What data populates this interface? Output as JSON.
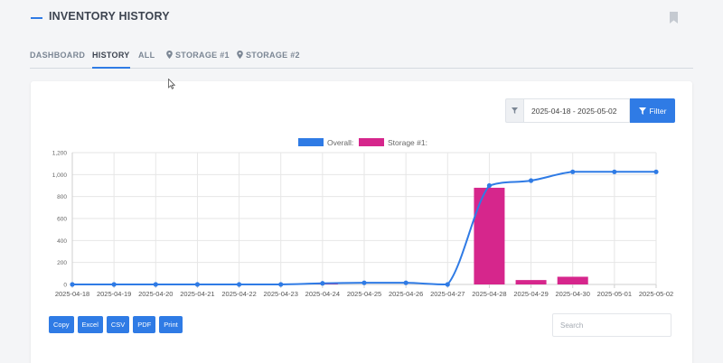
{
  "header": {
    "title": "INVENTORY HISTORY",
    "bookmark_icon": "bookmark-icon"
  },
  "tabs": [
    {
      "label": "DASHBOARD",
      "active": false
    },
    {
      "label": "HISTORY",
      "active": true
    },
    {
      "label": "ALL",
      "active": false
    },
    {
      "label": "STORAGE #1",
      "active": false,
      "icon": "location-pin-icon"
    },
    {
      "label": "STORAGE #2",
      "active": false,
      "icon": "location-pin-icon"
    }
  ],
  "filter": {
    "date_range": "2025-04-18 - 2025-05-02",
    "button_label": "Filter",
    "icon": "filter-icon"
  },
  "colors": {
    "accent": "#2f7be5",
    "overall": "#2f7be5",
    "storage1": "#d6268c"
  },
  "chart_data": {
    "type": "bar+line",
    "categories": [
      "2025-04-18",
      "2025-04-19",
      "2025-04-20",
      "2025-04-21",
      "2025-04-22",
      "2025-04-23",
      "2025-04-24",
      "2025-04-25",
      "2025-04-26",
      "2025-04-27",
      "2025-04-28",
      "2025-04-29",
      "2025-04-30",
      "2025-05-01",
      "2025-05-02"
    ],
    "series": [
      {
        "name": "Overall:",
        "type": "line",
        "values": [
          0,
          0,
          0,
          0,
          0,
          0,
          10,
          15,
          15,
          0,
          900,
          945,
          1025,
          1025,
          1025
        ]
      },
      {
        "name": "Storage #1:",
        "type": "bar",
        "values": [
          0,
          0,
          0,
          0,
          0,
          0,
          10,
          0,
          0,
          0,
          880,
          40,
          70,
          0,
          0
        ]
      }
    ],
    "ylim": [
      0,
      1200
    ],
    "yticks": [
      "0",
      "200",
      "400",
      "600",
      "800",
      "1,000",
      "1,200"
    ],
    "grid": true,
    "legend_position": "top-center"
  },
  "exports": [
    "Copy",
    "Excel",
    "CSV",
    "PDF",
    "Print"
  ],
  "search": {
    "placeholder": "Search",
    "value": ""
  }
}
